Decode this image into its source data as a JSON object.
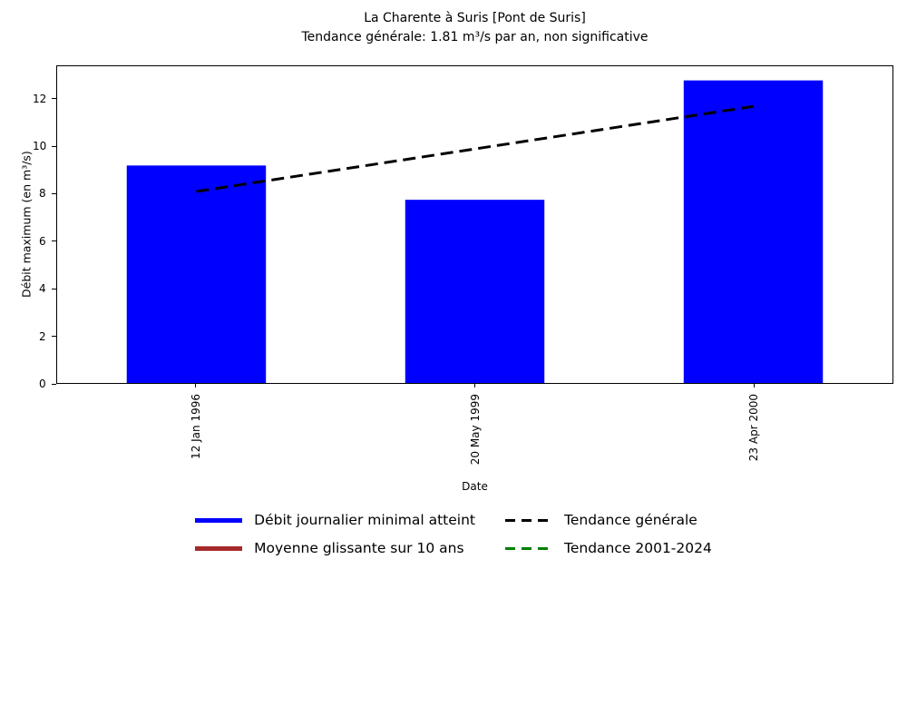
{
  "chart_data": {
    "type": "bar",
    "title": "La Charente à Suris [Pont de Suris]",
    "subtitle": "Tendance générale: 1.81 m³/s par an, non significative",
    "categories": [
      "12 Jan 1996",
      "20 May 1999",
      "23 Apr 2000"
    ],
    "values": [
      9.2,
      7.75,
      12.8
    ],
    "bar_color": "#0000ff",
    "bar_width_fraction": 0.5,
    "xlabel": "Date",
    "ylabel": "Débit maximum (en m³/s)",
    "ylim": [
      0,
      13.4
    ],
    "yticks": [
      0,
      2,
      4,
      6,
      8,
      10,
      12
    ],
    "grid": false,
    "trend_line": {
      "name": "Tendance générale",
      "x_index": [
        0,
        2
      ],
      "y": [
        8.1,
        11.7
      ],
      "color": "#000000",
      "style": "dashed",
      "width": 3
    },
    "legend": {
      "position": "bottom-center",
      "columns": 2,
      "entries": [
        {
          "label": "Débit journalier minimal atteint",
          "color": "#0000ff",
          "line": "solid"
        },
        {
          "label": "Moyenne glissante sur 10 ans",
          "color": "#a52a2a",
          "line": "solid"
        },
        {
          "label": "Tendance générale",
          "color": "#000000",
          "line": "dashed"
        },
        {
          "label": "Tendance 2001-2024",
          "color": "#008000",
          "line": "dashed"
        }
      ]
    }
  }
}
